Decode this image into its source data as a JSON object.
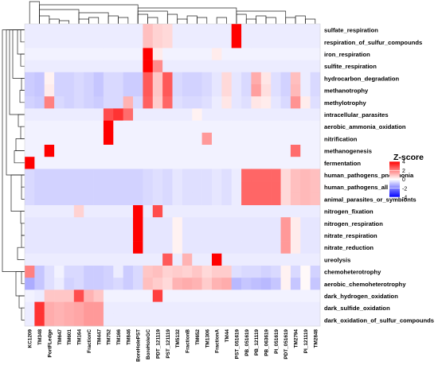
{
  "chart_data": {
    "type": "heatmap",
    "title": "",
    "xlabel": "",
    "ylabel": "",
    "columns": [
      "KC1209",
      "TM348",
      "PortFLedge",
      "TM647",
      "TM601",
      "TM164",
      "FractionC",
      "TM447",
      "TM752",
      "TM166",
      "TM846",
      "BoreHolePST",
      "BoreHoleGC",
      "PDT_121119",
      "PST_121119",
      "TM5132",
      "FractionB",
      "TM652",
      "TM1306",
      "FractionA",
      "TM44",
      "PST_051619",
      "PB_051619",
      "PB_121119",
      "PB_063619",
      "PI_051619",
      "PDT_051619",
      "TM2794",
      "PI_121119",
      "TM2848"
    ],
    "rows": [
      "sulfate_respiration",
      "respiration_of_sulfur_compounds",
      "iron_respiration",
      "sulfite_respiration",
      "hydrocarbon_degradation",
      "methanotrophy",
      "methylotrophy",
      "intracellular_parasites",
      "aerobic_ammonia_oxidation",
      "nitrification",
      "methanogenesis",
      "fermentation",
      "human_pathogens_pneumonia",
      "human_pathogens_all",
      "animal_parasites_or_symbionts",
      "nitrogen_fixation",
      "nitrogen_respiration",
      "nitrate_respiration",
      "nitrate_reduction",
      "ureolysis",
      "chemoheterotrophy",
      "aerobic_chemoheterotrophy",
      "dark_hydrogen_oxidation",
      "dark_sulfide_oxidation",
      "dark_oxidation_of_sulfur_compounds"
    ],
    "values": [
      [
        -0.3,
        -0.3,
        -0.3,
        -0.3,
        -0.3,
        -0.3,
        -0.3,
        -0.3,
        -0.3,
        -0.3,
        -0.3,
        -0.3,
        1.0,
        0.7,
        0.6,
        -0.3,
        -0.3,
        -0.3,
        -0.3,
        -0.3,
        -0.3,
        4.2,
        -0.3,
        -0.3,
        -0.3,
        -0.3,
        -0.3,
        -0.3,
        -0.3,
        -0.3
      ],
      [
        -0.3,
        -0.3,
        -0.3,
        -0.3,
        -0.3,
        -0.3,
        -0.3,
        -0.3,
        -0.3,
        -0.3,
        -0.3,
        -0.3,
        1.0,
        0.7,
        0.6,
        -0.3,
        -0.3,
        -0.3,
        -0.3,
        -0.3,
        -0.3,
        4.2,
        -0.3,
        -0.3,
        -0.3,
        -0.3,
        -0.3,
        -0.3,
        -0.3,
        -0.3
      ],
      [
        -0.2,
        -0.2,
        -0.2,
        -0.2,
        -0.2,
        -0.2,
        -0.2,
        -0.2,
        -0.2,
        -0.2,
        -0.2,
        -0.2,
        4.5,
        0.3,
        -0.2,
        -0.2,
        -0.2,
        -0.2,
        -0.2,
        0.3,
        -0.2,
        -0.2,
        -0.2,
        -0.2,
        -0.2,
        -0.2,
        -0.2,
        -0.2,
        -0.2,
        -0.2
      ],
      [
        -0.3,
        -0.3,
        -0.3,
        -0.3,
        -0.3,
        -0.3,
        -0.3,
        -0.3,
        -0.3,
        -0.3,
        -0.3,
        -0.3,
        4.3,
        1.8,
        -0.3,
        -0.3,
        -0.3,
        -0.3,
        -0.3,
        -0.3,
        -0.3,
        -0.3,
        -0.3,
        -0.3,
        -0.3,
        -0.3,
        -0.3,
        -0.3,
        -0.3,
        -0.3
      ],
      [
        -0.8,
        -0.9,
        0.2,
        -0.7,
        -0.7,
        -0.6,
        -0.7,
        -0.9,
        -0.6,
        -0.6,
        -0.8,
        -0.8,
        2.6,
        0.9,
        2.6,
        -0.6,
        -0.7,
        -0.7,
        -0.6,
        -0.4,
        0.6,
        -0.4,
        -0.6,
        1.3,
        0.4,
        -0.5,
        -0.7,
        1.0,
        -0.3,
        -0.6
      ],
      [
        -0.8,
        -0.9,
        0.3,
        -0.7,
        -0.7,
        -0.6,
        -0.7,
        -0.9,
        -0.6,
        -0.6,
        -0.8,
        -0.8,
        2.6,
        0.9,
        2.6,
        -0.6,
        -0.7,
        -0.7,
        -0.6,
        -0.4,
        0.6,
        -0.4,
        -0.6,
        1.5,
        0.5,
        -0.5,
        -0.7,
        1.1,
        -0.3,
        -0.6
      ],
      [
        -0.7,
        -0.8,
        2.0,
        -0.6,
        -0.7,
        -0.6,
        -0.7,
        -0.8,
        -0.6,
        -0.6,
        1.2,
        -0.6,
        2.5,
        0.8,
        2.4,
        -0.5,
        -0.6,
        -0.6,
        -0.5,
        -0.3,
        0.4,
        -0.4,
        -0.5,
        0.4,
        0.3,
        -0.4,
        -0.6,
        1.7,
        0.3,
        -0.5
      ],
      [
        -0.3,
        -0.3,
        -0.3,
        -0.3,
        -0.3,
        -0.3,
        -0.3,
        -0.3,
        2.8,
        3.2,
        2.3,
        -0.3,
        -0.3,
        -0.3,
        -0.3,
        -0.3,
        -0.3,
        0.2,
        -0.3,
        -0.3,
        -0.3,
        -0.3,
        -0.3,
        -0.3,
        -0.3,
        -0.3,
        -0.3,
        -0.3,
        -0.3,
        -0.3
      ],
      [
        -0.2,
        -0.2,
        -0.2,
        -0.2,
        -0.2,
        -0.2,
        -0.2,
        -0.2,
        5.0,
        -0.2,
        -0.2,
        -0.2,
        -0.2,
        -0.2,
        -0.2,
        -0.2,
        -0.2,
        -0.2,
        -0.2,
        -0.2,
        -0.2,
        -0.2,
        -0.2,
        -0.2,
        -0.2,
        -0.2,
        -0.2,
        -0.2,
        -0.2,
        -0.2
      ],
      [
        -0.2,
        -0.2,
        -0.2,
        -0.2,
        -0.2,
        -0.2,
        -0.2,
        -0.2,
        4.8,
        -0.2,
        -0.2,
        -0.2,
        -0.2,
        -0.2,
        -0.2,
        -0.2,
        -0.2,
        -0.2,
        1.6,
        -0.2,
        -0.2,
        -0.2,
        -0.2,
        -0.2,
        -0.2,
        -0.2,
        -0.2,
        -0.2,
        -0.2,
        -0.2
      ],
      [
        -0.2,
        -0.2,
        4.8,
        -0.2,
        -0.2,
        -0.2,
        -0.2,
        -0.2,
        -0.2,
        -0.2,
        -0.2,
        -0.2,
        -0.2,
        -0.2,
        -0.2,
        -0.2,
        -0.2,
        -0.2,
        -0.2,
        -0.2,
        -0.2,
        -0.2,
        -0.2,
        -0.2,
        -0.2,
        -0.2,
        -0.2,
        2.3,
        -0.2,
        -0.2
      ],
      [
        5.0,
        -0.2,
        -0.2,
        -0.2,
        -0.2,
        -0.2,
        -0.2,
        -0.2,
        -0.2,
        -0.2,
        -0.2,
        -0.2,
        -0.2,
        -0.2,
        -0.2,
        -0.2,
        -0.2,
        -0.2,
        -0.2,
        -0.2,
        -0.2,
        -0.2,
        -0.2,
        -0.2,
        -0.2,
        -0.2,
        -0.2,
        -0.2,
        -0.2,
        -0.2
      ],
      [
        -0.6,
        -0.7,
        -0.7,
        -0.7,
        -0.7,
        -0.7,
        -0.7,
        -0.7,
        -0.7,
        -0.7,
        -0.7,
        -0.7,
        -0.6,
        -0.5,
        -0.6,
        -0.4,
        -0.5,
        -0.5,
        -0.5,
        -0.4,
        -0.5,
        -0.3,
        2.4,
        2.4,
        2.4,
        2.4,
        0.6,
        1.0,
        1.1,
        1.0
      ],
      [
        -0.6,
        -0.7,
        -0.7,
        -0.7,
        -0.7,
        -0.7,
        -0.7,
        -0.7,
        -0.7,
        -0.7,
        -0.7,
        -0.7,
        -0.6,
        -0.5,
        -0.6,
        -0.4,
        -0.5,
        -0.5,
        -0.5,
        -0.4,
        -0.5,
        -0.3,
        2.4,
        2.4,
        2.4,
        2.4,
        0.6,
        1.0,
        1.1,
        1.0
      ],
      [
        -0.6,
        -0.7,
        -0.7,
        -0.7,
        -0.7,
        -0.7,
        -0.7,
        -0.7,
        -0.7,
        -0.7,
        -0.7,
        -0.7,
        -0.6,
        -0.5,
        -0.6,
        -0.4,
        -0.5,
        -0.5,
        -0.5,
        -0.4,
        -0.5,
        -0.3,
        2.4,
        2.4,
        2.4,
        2.4,
        0.6,
        1.0,
        1.1,
        1.0
      ],
      [
        -0.3,
        -0.3,
        -0.3,
        -0.3,
        -0.3,
        0.7,
        -0.3,
        -0.3,
        -0.3,
        -0.3,
        -0.3,
        5.0,
        -0.3,
        2.8,
        -0.3,
        -0.3,
        -0.3,
        -0.3,
        -0.3,
        -0.3,
        -0.3,
        -0.3,
        -0.3,
        -0.3,
        -0.3,
        -0.3,
        -0.3,
        -0.3,
        -0.3,
        -0.3
      ],
      [
        -0.4,
        -0.4,
        -0.4,
        -0.4,
        -0.4,
        -0.4,
        -0.4,
        -0.4,
        -0.4,
        -0.4,
        -0.4,
        5.0,
        -0.4,
        -0.4,
        -0.4,
        0.2,
        -0.4,
        -0.4,
        -0.4,
        -0.4,
        -0.4,
        -0.4,
        -0.4,
        -0.4,
        -0.4,
        -0.4,
        1.6,
        0.3,
        -0.4,
        -0.4
      ],
      [
        -0.4,
        -0.4,
        -0.4,
        -0.4,
        -0.4,
        -0.4,
        -0.4,
        -0.4,
        -0.4,
        -0.4,
        -0.4,
        5.0,
        -0.4,
        -0.4,
        -0.4,
        0.2,
        -0.4,
        -0.4,
        -0.4,
        -0.4,
        -0.4,
        -0.4,
        -0.4,
        -0.4,
        -0.4,
        -0.4,
        1.6,
        0.3,
        -0.4,
        -0.4
      ],
      [
        -0.4,
        -0.4,
        -0.4,
        -0.4,
        -0.4,
        -0.4,
        -0.4,
        -0.4,
        -0.4,
        -0.4,
        -0.4,
        5.0,
        -0.4,
        -0.4,
        -0.4,
        0.2,
        -0.4,
        -0.4,
        -0.4,
        -0.4,
        -0.4,
        -0.4,
        -0.4,
        -0.4,
        -0.4,
        -0.4,
        1.6,
        0.3,
        -0.4,
        -0.4
      ],
      [
        -0.3,
        -0.3,
        -0.3,
        -0.3,
        -0.3,
        -0.3,
        -0.3,
        -0.3,
        -0.3,
        -0.3,
        -0.3,
        -0.3,
        -0.3,
        -0.3,
        2.6,
        -0.3,
        1.2,
        -0.3,
        -0.3,
        4.5,
        -0.3,
        -0.3,
        -0.3,
        -0.3,
        -0.3,
        -0.3,
        -0.3,
        -0.3,
        -0.3,
        -0.3
      ],
      [
        2.0,
        -0.9,
        -0.5,
        -0.2,
        -0.6,
        -0.6,
        -0.8,
        -0.8,
        -0.7,
        -0.3,
        -0.8,
        -0.6,
        0.9,
        1.0,
        0.7,
        0.8,
        0.7,
        0.9,
        0.6,
        0.8,
        0.8,
        -0.5,
        -0.6,
        -0.6,
        -0.7,
        -0.6,
        0.2,
        -0.6,
        0.1,
        -0.7
      ],
      [
        -1.3,
        -0.9,
        -0.5,
        -0.3,
        -0.7,
        -0.6,
        -0.8,
        -0.8,
        -0.7,
        -0.6,
        -0.8,
        -0.6,
        1.0,
        0.8,
        0.6,
        1.2,
        1.3,
        1.2,
        0.8,
        1.2,
        1.3,
        -1.1,
        -0.9,
        -1.0,
        -1.1,
        -0.9,
        0.2,
        -0.9,
        0.1,
        -0.9
      ],
      [
        -0.2,
        -0.3,
        0.9,
        0.9,
        0.9,
        2.8,
        1.2,
        0.9,
        -0.2,
        -0.2,
        -0.2,
        -0.2,
        -0.2,
        3.0,
        -0.2,
        -0.2,
        -0.2,
        -0.2,
        -0.2,
        -0.2,
        -0.2,
        -0.2,
        -0.2,
        -0.2,
        -0.2,
        -0.2,
        -0.2,
        -0.2,
        -0.2,
        -0.2
      ],
      [
        -0.3,
        3.2,
        1.3,
        1.2,
        1.3,
        1.4,
        1.6,
        1.6,
        -0.3,
        -0.3,
        -0.3,
        -0.3,
        -0.3,
        -0.3,
        -0.3,
        -0.3,
        -0.3,
        -0.3,
        -0.3,
        -0.3,
        -0.3,
        -0.3,
        -0.3,
        -0.3,
        -0.3,
        -0.3,
        -0.3,
        -0.3,
        -0.3,
        -0.3
      ],
      [
        -0.3,
        3.2,
        1.3,
        1.2,
        1.3,
        1.4,
        1.6,
        1.6,
        -0.3,
        -0.3,
        -0.3,
        -0.3,
        -0.3,
        -0.3,
        -0.3,
        -0.3,
        -0.3,
        -0.3,
        -0.3,
        -0.3,
        -0.3,
        -0.3,
        -0.3,
        -0.3,
        -0.3,
        -0.3,
        -0.3,
        -0.3,
        -0.3,
        -0.3
      ]
    ],
    "legend": {
      "title": "Z-score",
      "ticks": [
        4,
        2,
        0,
        -2,
        -4
      ],
      "range": [
        -4,
        4
      ],
      "placement": "right",
      "colors": {
        "low": "#0000ff",
        "mid": "#ffffff",
        "high": "#ff0000"
      }
    },
    "dendrograms": {
      "rows": "left",
      "columns": "top"
    }
  }
}
